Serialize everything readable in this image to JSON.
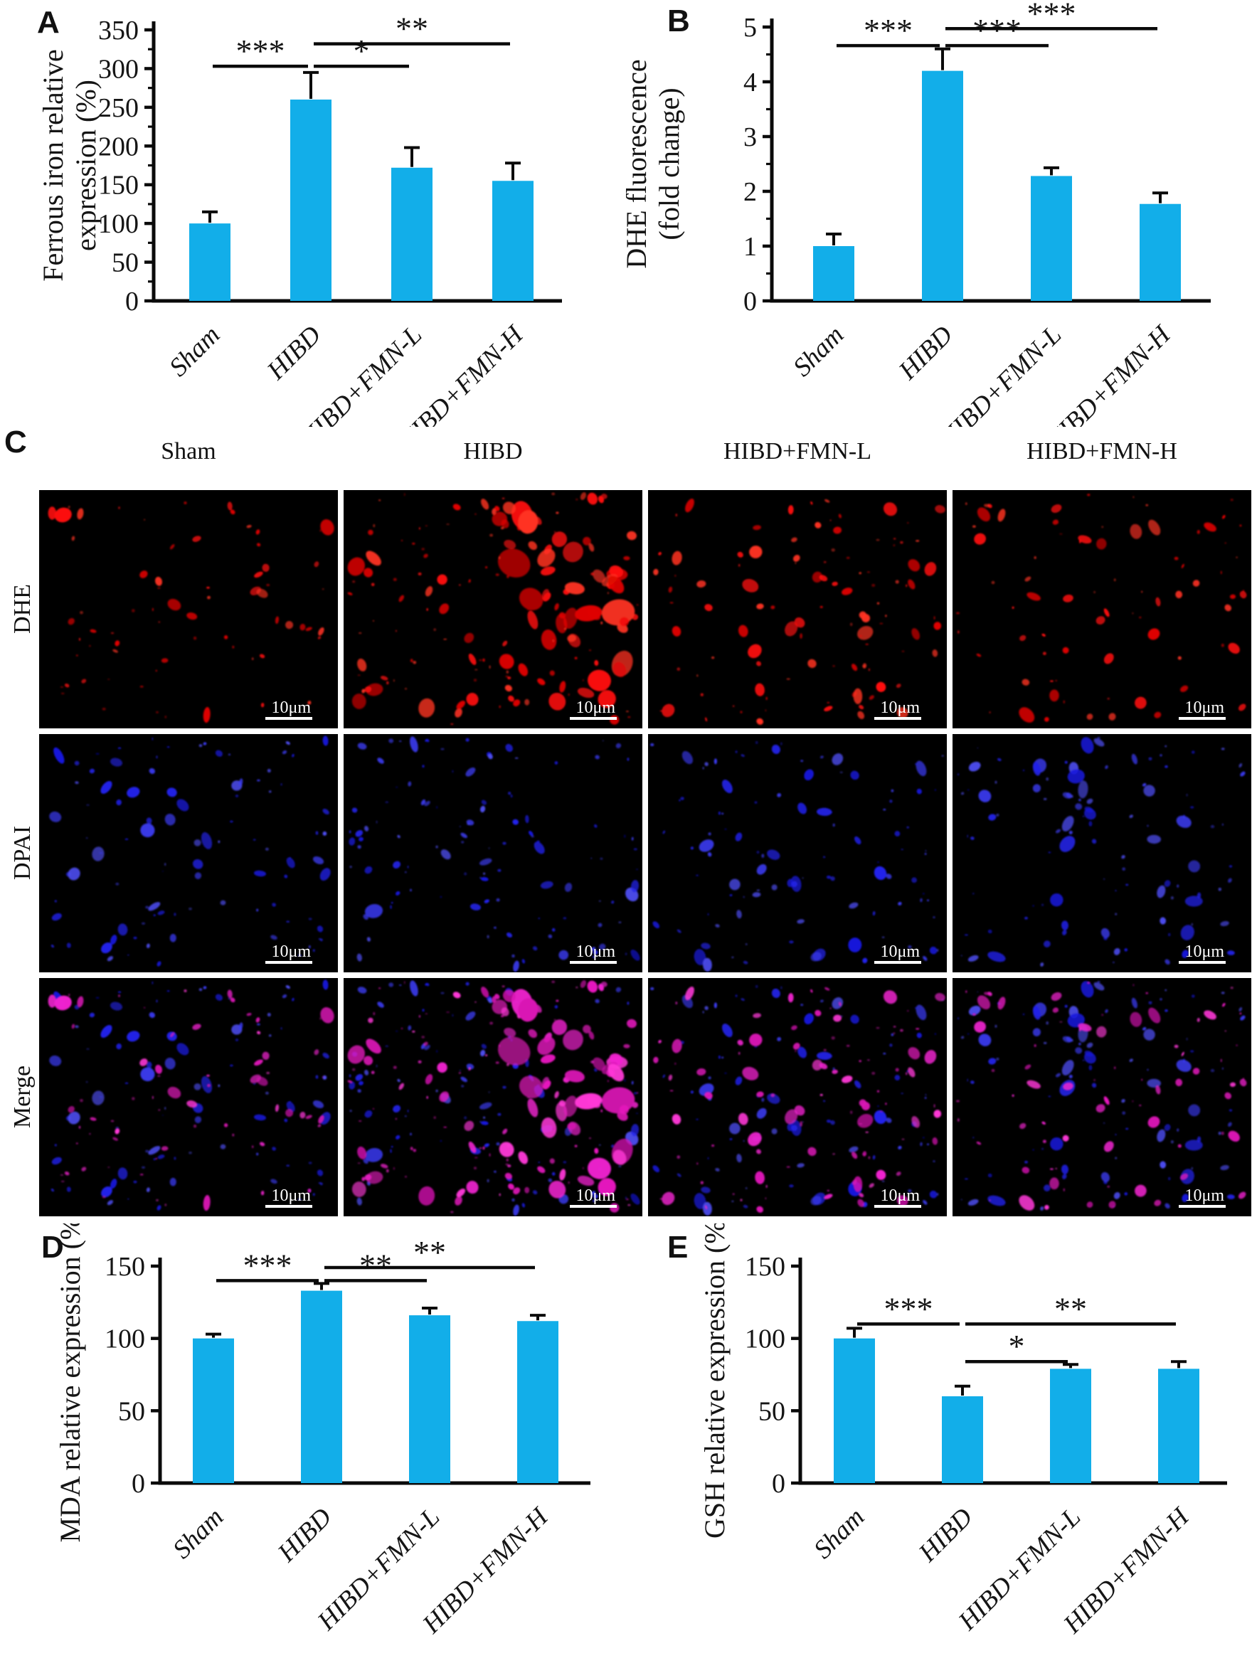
{
  "colors": {
    "bar_fill": "#12AEE9",
    "axis": "#0a0a0a",
    "text": "#151515",
    "micro_background": "#000000",
    "micro_red_palette": [
      "#ff1111",
      "#f20707",
      "#e00505",
      "#ff3322"
    ],
    "micro_blue_palette": [
      "#2222ea",
      "#1818dd",
      "#3b3bf2",
      "#4d4df0"
    ],
    "micro_magenta_palette": [
      "#f023cf",
      "#e619be",
      "#ff38d8",
      "#d914b4"
    ],
    "scale_bar_color": "#ffffff"
  },
  "panels": {
    "A": {
      "letter": "A"
    },
    "B": {
      "letter": "B"
    },
    "C": {
      "letter": "C",
      "column_headers": [
        "Sham",
        "HIBD",
        "HIBD+FMN-L",
        "HIBD+FMN-H"
      ],
      "row_labels": [
        "DHE",
        "DPAI",
        "Merge"
      ],
      "scale_bar_label": "10μm",
      "dot_counts": {
        "red": [
          40,
          92,
          60,
          46
        ],
        "blue": [
          56,
          66,
          58,
          62
        ]
      }
    },
    "D": {
      "letter": "D"
    },
    "E": {
      "letter": "E"
    }
  },
  "chart_data": [
    {
      "panel": "A",
      "type": "bar",
      "title": "",
      "ylabel": "Ferrous iron relative expression (%)",
      "ylabel_lines": [
        "Ferrous iron relative",
        "expression (%)"
      ],
      "xlabel": "",
      "categories": [
        "Sham",
        "HIBD",
        "HIBD+FMN-L",
        "HIBD+FMN-H"
      ],
      "values": [
        100,
        260,
        172,
        155
      ],
      "errors": [
        15,
        35,
        26,
        23
      ],
      "ylim": [
        0,
        350
      ],
      "ytick_step": 50,
      "minor_step": 25,
      "grid": false,
      "legend": null,
      "significance": [
        {
          "a": 0,
          "b": 1,
          "label": "***",
          "y": 303
        },
        {
          "a": 1,
          "b": 2,
          "label": "*",
          "y": 303
        },
        {
          "a": 1,
          "b": 3,
          "label": "**",
          "y": 332
        }
      ]
    },
    {
      "panel": "B",
      "type": "bar",
      "title": "",
      "ylabel": "DHE fluorescence (fold change)",
      "ylabel_lines": [
        "DHE fluorescence",
        "(fold change)"
      ],
      "xlabel": "",
      "categories": [
        "Sham",
        "HIBD",
        "HIBD+FMN-L",
        "HIBD+FMN-H"
      ],
      "values": [
        1.0,
        4.2,
        2.28,
        1.77
      ],
      "errors": [
        0.22,
        0.4,
        0.15,
        0.2
      ],
      "ylim": [
        0,
        5
      ],
      "ytick_step": 1,
      "minor_step": 0.5,
      "grid": false,
      "legend": null,
      "significance": [
        {
          "a": 0,
          "b": 1,
          "label": "***",
          "y": 4.66
        },
        {
          "a": 1,
          "b": 2,
          "label": "***",
          "y": 4.66
        },
        {
          "a": 1,
          "b": 3,
          "label": "***",
          "y": 4.97
        }
      ]
    },
    {
      "panel": "D",
      "type": "bar",
      "title": "",
      "ylabel": "MDA relative expression (%)",
      "ylabel_lines": [
        "MDA relative expression (%)"
      ],
      "xlabel": "",
      "categories": [
        "Sham",
        "HIBD",
        "HIBD+FMN-L",
        "HIBD+FMN-H"
      ],
      "values": [
        100,
        133,
        116,
        112
      ],
      "errors": [
        3,
        5,
        5,
        4
      ],
      "ylim": [
        0,
        150
      ],
      "ytick_step": 50,
      "minor_step": null,
      "grid": false,
      "legend": null,
      "significance": [
        {
          "a": 0,
          "b": 1,
          "label": "***",
          "y": 140
        },
        {
          "a": 1,
          "b": 2,
          "label": "**",
          "y": 140
        },
        {
          "a": 1,
          "b": 3,
          "label": "**",
          "y": 149
        }
      ]
    },
    {
      "panel": "E",
      "type": "bar",
      "title": "",
      "ylabel": "GSH relative expression (%)",
      "ylabel_lines": [
        "GSH relative expression (%)"
      ],
      "xlabel": "",
      "categories": [
        "Sham",
        "HIBD",
        "HIBD+FMN-L",
        "HIBD+FMN-H"
      ],
      "values": [
        100,
        60,
        79,
        79
      ],
      "errors": [
        7,
        7,
        3,
        5
      ],
      "ylim": [
        0,
        150
      ],
      "ytick_step": 50,
      "minor_step": null,
      "grid": false,
      "legend": null,
      "significance": [
        {
          "a": 0,
          "b": 1,
          "label": "***",
          "y": 110
        },
        {
          "a": 1,
          "b": 2,
          "label": "*",
          "y": 84
        },
        {
          "a": 1,
          "b": 3,
          "label": "**",
          "y": 110
        }
      ]
    }
  ]
}
